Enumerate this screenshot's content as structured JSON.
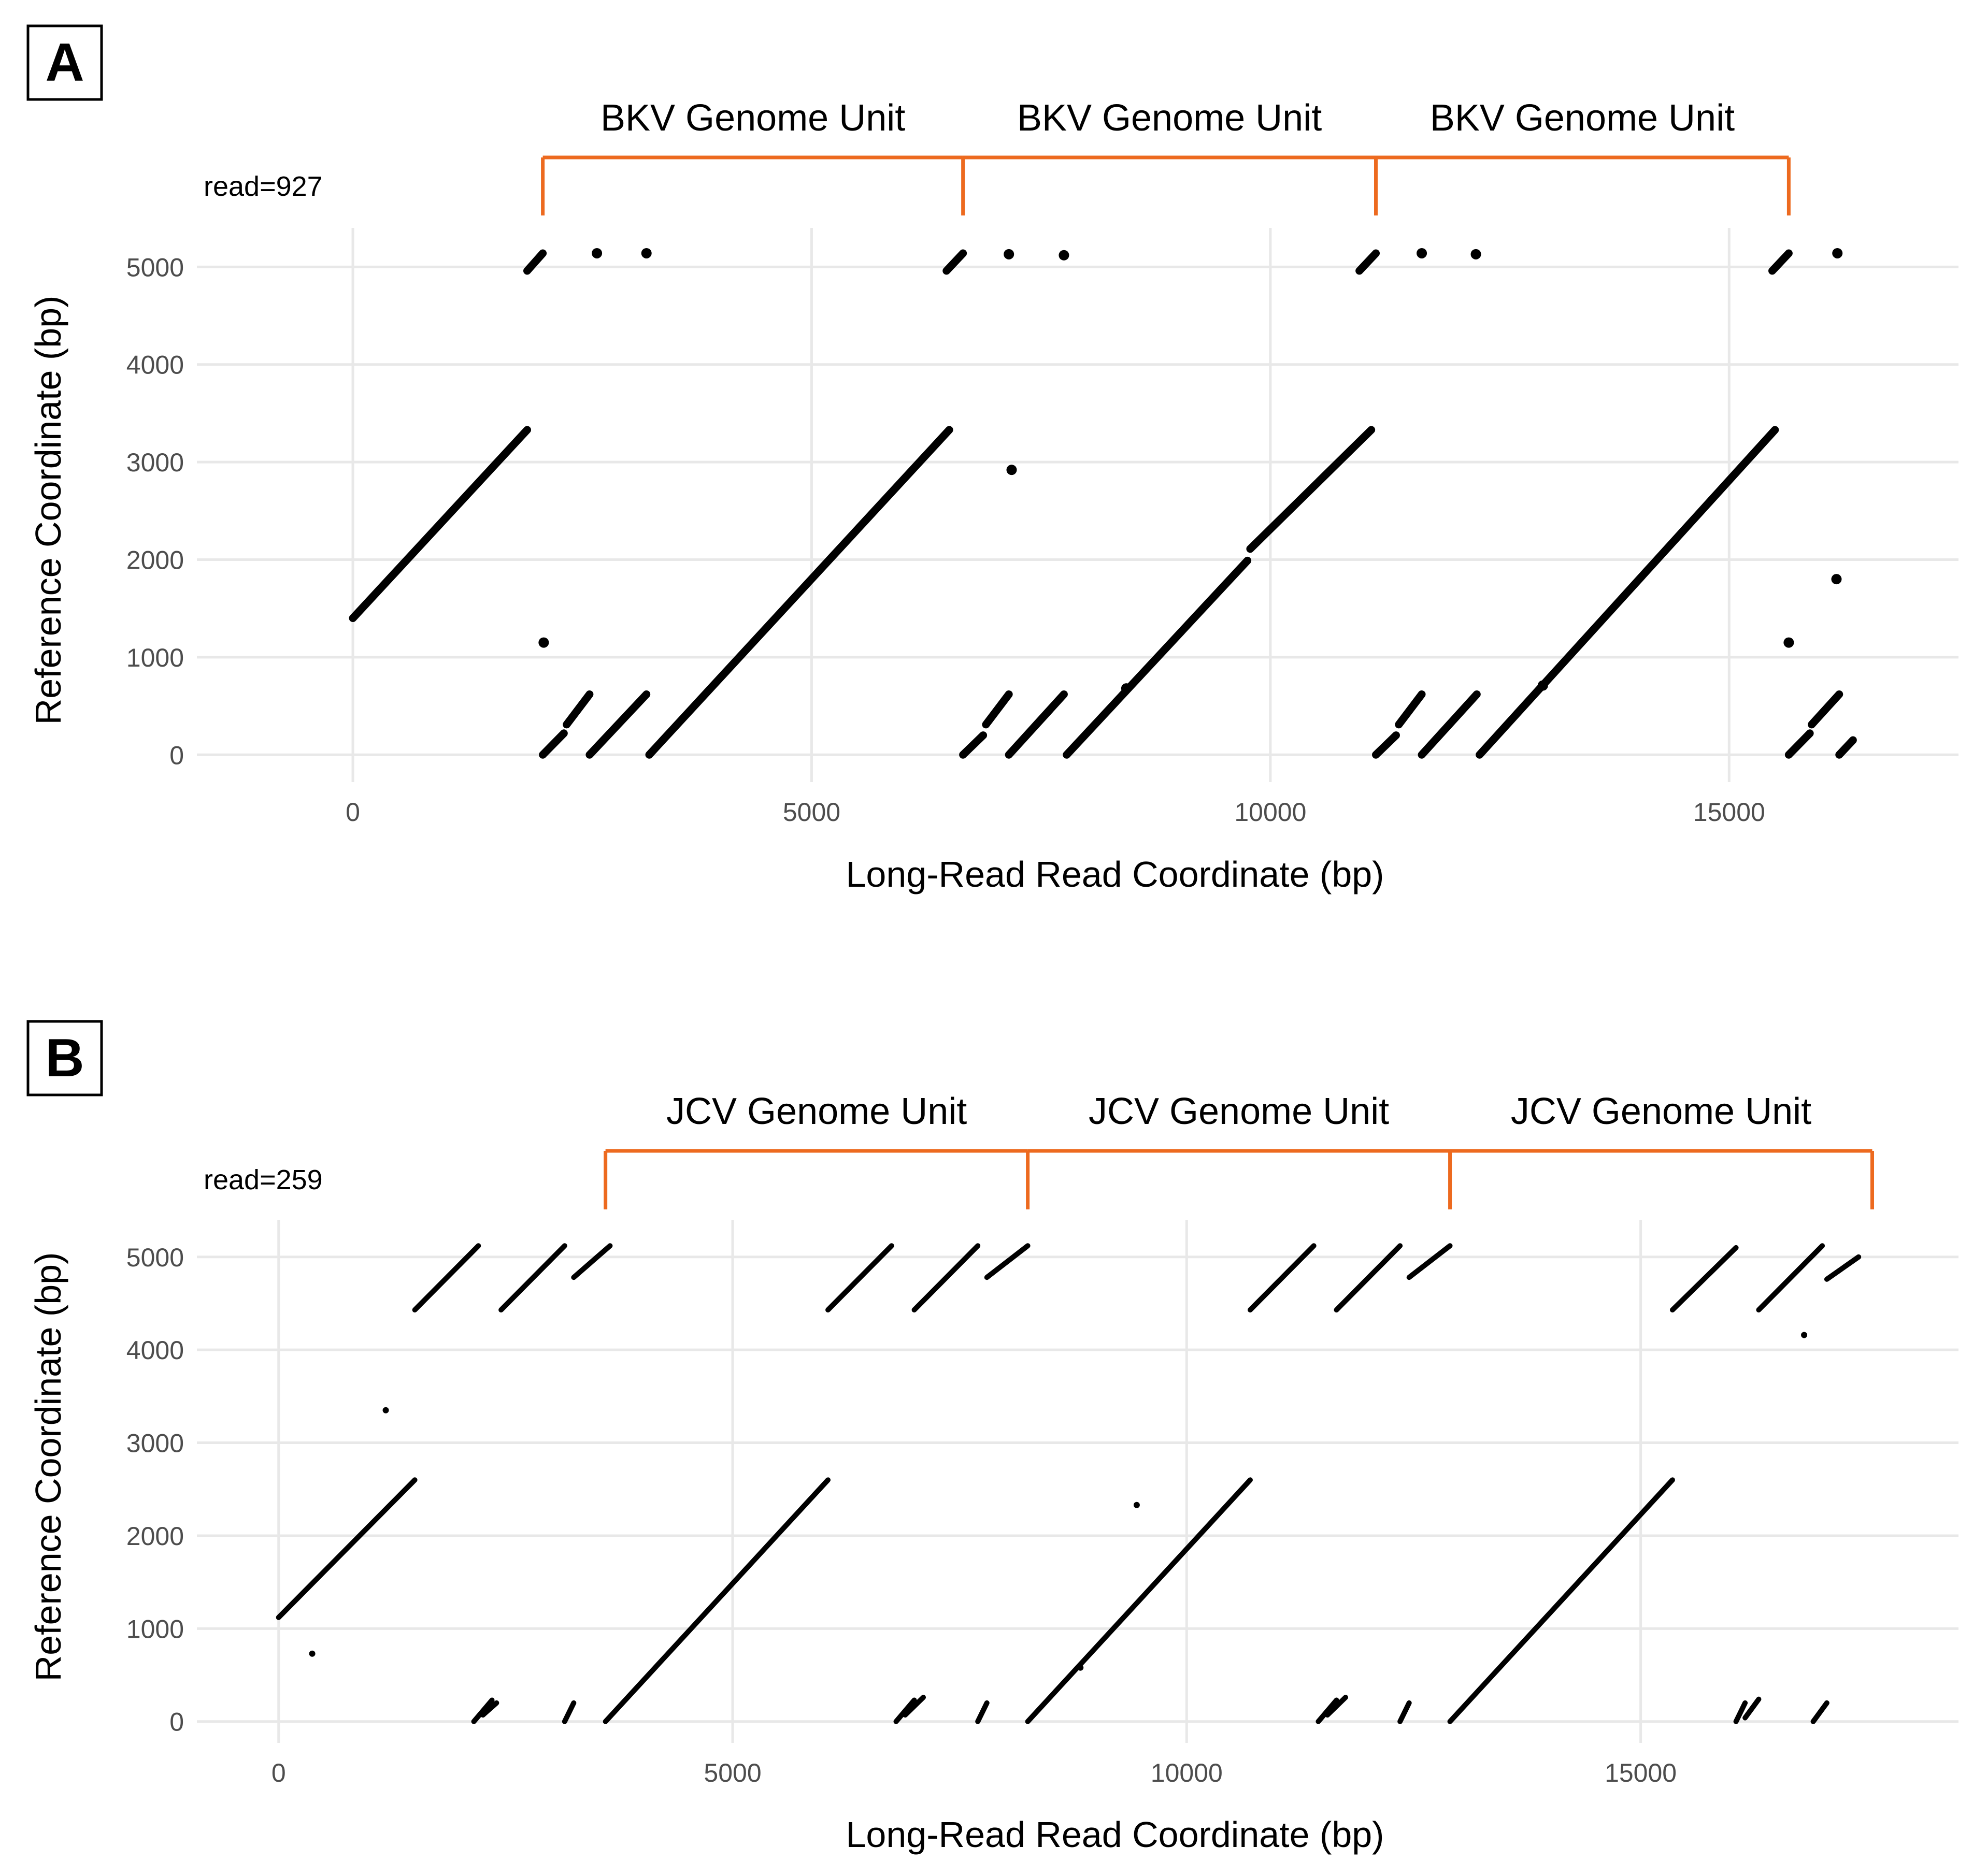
{
  "chart_data": [
    {
      "type": "scatter",
      "panel_label": "A",
      "read_label": "read=927",
      "xlabel": "Long-Read Read Coordinate (bp)",
      "ylabel": "Reference Coordinate (bp)",
      "xlim": [
        -1700,
        17500
      ],
      "ylim": [
        -280,
        5400
      ],
      "xticks": [
        0,
        5000,
        10000,
        15000
      ],
      "yticks": [
        0,
        1000,
        2000,
        3000,
        4000,
        5000
      ],
      "grid": true,
      "bracket_color": "#ED6A1F",
      "units": [
        {
          "label": "BKV Genome Unit",
          "start": 2070,
          "end": 6650
        },
        {
          "label": "BKV Genome Unit",
          "start": 6650,
          "end": 11150
        },
        {
          "label": "BKV Genome Unit",
          "start": 11150,
          "end": 15650
        }
      ],
      "segments": [
        {
          "x": [
            0,
            1900
          ],
          "y": [
            1400,
            3330
          ]
        },
        {
          "x": [
            1900,
            2070
          ],
          "y": [
            4960,
            5140
          ]
        },
        {
          "x": [
            2070,
            2300
          ],
          "y": [
            0,
            220
          ]
        },
        {
          "x": [
            2330,
            2580
          ],
          "y": [
            310,
            620
          ]
        },
        {
          "x": [
            2580,
            3200
          ],
          "y": [
            0,
            620
          ]
        },
        {
          "x": [
            3230,
            6500
          ],
          "y": [
            0,
            3330
          ]
        },
        {
          "x": [
            6470,
            6650
          ],
          "y": [
            4960,
            5140
          ]
        },
        {
          "x": [
            6650,
            6870
          ],
          "y": [
            0,
            200
          ]
        },
        {
          "x": [
            6900,
            7150
          ],
          "y": [
            310,
            620
          ]
        },
        {
          "x": [
            7150,
            7750
          ],
          "y": [
            0,
            620
          ]
        },
        {
          "x": [
            7780,
            9750
          ],
          "y": [
            0,
            1990
          ]
        },
        {
          "x": [
            9780,
            11100
          ],
          "y": [
            2110,
            3330
          ]
        },
        {
          "x": [
            10970,
            11150
          ],
          "y": [
            4960,
            5140
          ]
        },
        {
          "x": [
            11150,
            11370
          ],
          "y": [
            0,
            200
          ]
        },
        {
          "x": [
            11400,
            11650
          ],
          "y": [
            310,
            620
          ]
        },
        {
          "x": [
            11650,
            12250
          ],
          "y": [
            0,
            620
          ]
        },
        {
          "x": [
            12280,
            15500
          ],
          "y": [
            0,
            3330
          ]
        },
        {
          "x": [
            15470,
            15650
          ],
          "y": [
            4960,
            5140
          ]
        },
        {
          "x": [
            15650,
            15880
          ],
          "y": [
            0,
            220
          ]
        },
        {
          "x": [
            15900,
            16200
          ],
          "y": [
            310,
            620
          ]
        },
        {
          "x": [
            16200,
            16350
          ],
          "y": [
            0,
            150
          ]
        }
      ],
      "points": [
        {
          "x": 2660,
          "y": 5140
        },
        {
          "x": 3200,
          "y": 5140
        },
        {
          "x": 7150,
          "y": 5130
        },
        {
          "x": 7750,
          "y": 5120
        },
        {
          "x": 11650,
          "y": 5140
        },
        {
          "x": 12240,
          "y": 5130
        },
        {
          "x": 16180,
          "y": 5140
        },
        {
          "x": 7180,
          "y": 2920
        },
        {
          "x": 2080,
          "y": 1150
        },
        {
          "x": 15650,
          "y": 1150
        },
        {
          "x": 16170,
          "y": 1800
        },
        {
          "x": 8430,
          "y": 680
        },
        {
          "x": 12970,
          "y": 710
        }
      ]
    },
    {
      "type": "scatter",
      "panel_label": "B",
      "read_label": "read=259",
      "xlabel": "Long-Read Read Coordinate (bp)",
      "ylabel": "Reference Coordinate (bp)",
      "xlim": [
        -900,
        18500
      ],
      "ylim": [
        -230,
        5400
      ],
      "xticks": [
        0,
        5000,
        10000,
        15000
      ],
      "yticks": [
        0,
        1000,
        2000,
        3000,
        4000,
        5000
      ],
      "grid": true,
      "bracket_color": "#ED6A1F",
      "units": [
        {
          "label": "JCV Genome Unit",
          "start": 3600,
          "end": 8250
        },
        {
          "label": "JCV Genome Unit",
          "start": 8250,
          "end": 12900
        },
        {
          "label": "JCV Genome Unit",
          "start": 12900,
          "end": 17550
        }
      ],
      "segments": [
        {
          "x": [
            0,
            1500
          ],
          "y": [
            1120,
            2600
          ]
        },
        {
          "x": [
            1500,
            2200
          ],
          "y": [
            4430,
            5120
          ]
        },
        {
          "x": [
            2450,
            3150
          ],
          "y": [
            4430,
            5120
          ]
        },
        {
          "x": [
            3250,
            3650
          ],
          "y": [
            4780,
            5120
          ]
        },
        {
          "x": [
            3600,
            6050
          ],
          "y": [
            0,
            2600
          ]
        },
        {
          "x": [
            6050,
            6750
          ],
          "y": [
            4430,
            5120
          ]
        },
        {
          "x": [
            7000,
            7700
          ],
          "y": [
            4430,
            5120
          ]
        },
        {
          "x": [
            7800,
            8250
          ],
          "y": [
            4780,
            5120
          ]
        },
        {
          "x": [
            8250,
            10700
          ],
          "y": [
            0,
            2600
          ]
        },
        {
          "x": [
            10700,
            11400
          ],
          "y": [
            4430,
            5120
          ]
        },
        {
          "x": [
            11650,
            12350
          ],
          "y": [
            4430,
            5120
          ]
        },
        {
          "x": [
            12450,
            12900
          ],
          "y": [
            4780,
            5120
          ]
        },
        {
          "x": [
            12900,
            15350
          ],
          "y": [
            0,
            2600
          ]
        },
        {
          "x": [
            15350,
            16050
          ],
          "y": [
            4430,
            5100
          ]
        },
        {
          "x": [
            16300,
            17000
          ],
          "y": [
            4430,
            5120
          ]
        },
        {
          "x": [
            17050,
            17400
          ],
          "y": [
            4760,
            5000
          ]
        },
        {
          "x": [
            2150,
            2350
          ],
          "y": [
            0,
            230
          ]
        },
        {
          "x": [
            2250,
            2400
          ],
          "y": [
            70,
            200
          ]
        },
        {
          "x": [
            3150,
            3250
          ],
          "y": [
            0,
            200
          ]
        },
        {
          "x": [
            6800,
            7000
          ],
          "y": [
            0,
            230
          ]
        },
        {
          "x": [
            6900,
            7100
          ],
          "y": [
            70,
            260
          ]
        },
        {
          "x": [
            7700,
            7800
          ],
          "y": [
            0,
            200
          ]
        },
        {
          "x": [
            11450,
            11650
          ],
          "y": [
            0,
            230
          ]
        },
        {
          "x": [
            11550,
            11750
          ],
          "y": [
            70,
            260
          ]
        },
        {
          "x": [
            12350,
            12450
          ],
          "y": [
            0,
            200
          ]
        },
        {
          "x": [
            16050,
            16150
          ],
          "y": [
            0,
            200
          ]
        },
        {
          "x": [
            16150,
            16300
          ],
          "y": [
            40,
            240
          ]
        },
        {
          "x": [
            16900,
            17050
          ],
          "y": [
            0,
            200
          ]
        }
      ],
      "points": [
        {
          "x": 1180,
          "y": 3350
        },
        {
          "x": 370,
          "y": 730
        },
        {
          "x": 9450,
          "y": 2330
        },
        {
          "x": 16800,
          "y": 4160
        },
        {
          "x": 8830,
          "y": 580
        }
      ]
    }
  ]
}
